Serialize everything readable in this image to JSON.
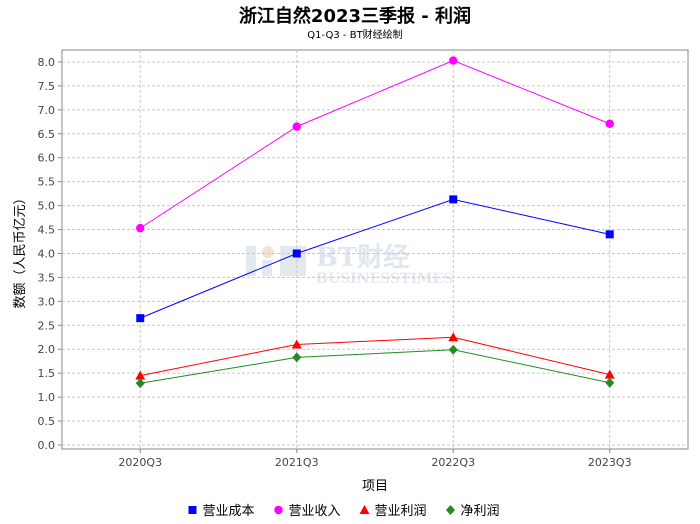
{
  "chart_data": {
    "type": "line",
    "title": "浙江自然2023三季报 - 利润",
    "subtitle": "Q1-Q3 - BT财经绘制",
    "xlabel": "项目",
    "ylabel": "数额（人民币亿元）",
    "categories": [
      "2020Q3",
      "2021Q3",
      "2022Q3",
      "2023Q3"
    ],
    "ylim": [
      0.0,
      8.25
    ],
    "yticks": [
      "0.0",
      "0.5",
      "1.0",
      "1.5",
      "2.0",
      "2.5",
      "3.0",
      "3.5",
      "4.0",
      "4.5",
      "5.0",
      "5.5",
      "6.0",
      "6.5",
      "7.0",
      "7.5",
      "8.0"
    ],
    "grid": true,
    "legend_position": "bottom",
    "series": [
      {
        "name": "营业成本",
        "values": [
          2.65,
          4.0,
          5.13,
          4.4
        ],
        "color": "#0000ff",
        "marker": "square"
      },
      {
        "name": "营业收入",
        "values": [
          4.53,
          6.65,
          8.03,
          6.71
        ],
        "color": "#ff00ff",
        "marker": "circle"
      },
      {
        "name": "营业利润",
        "values": [
          1.45,
          2.1,
          2.25,
          1.47
        ],
        "color": "#ff0000",
        "marker": "triangle"
      },
      {
        "name": "净利润",
        "values": [
          1.29,
          1.83,
          1.99,
          1.3
        ],
        "color": "#228b22",
        "marker": "diamond"
      }
    ]
  },
  "watermark": {
    "main": "BT财经",
    "sub": "BUSINESSTIMES"
  }
}
